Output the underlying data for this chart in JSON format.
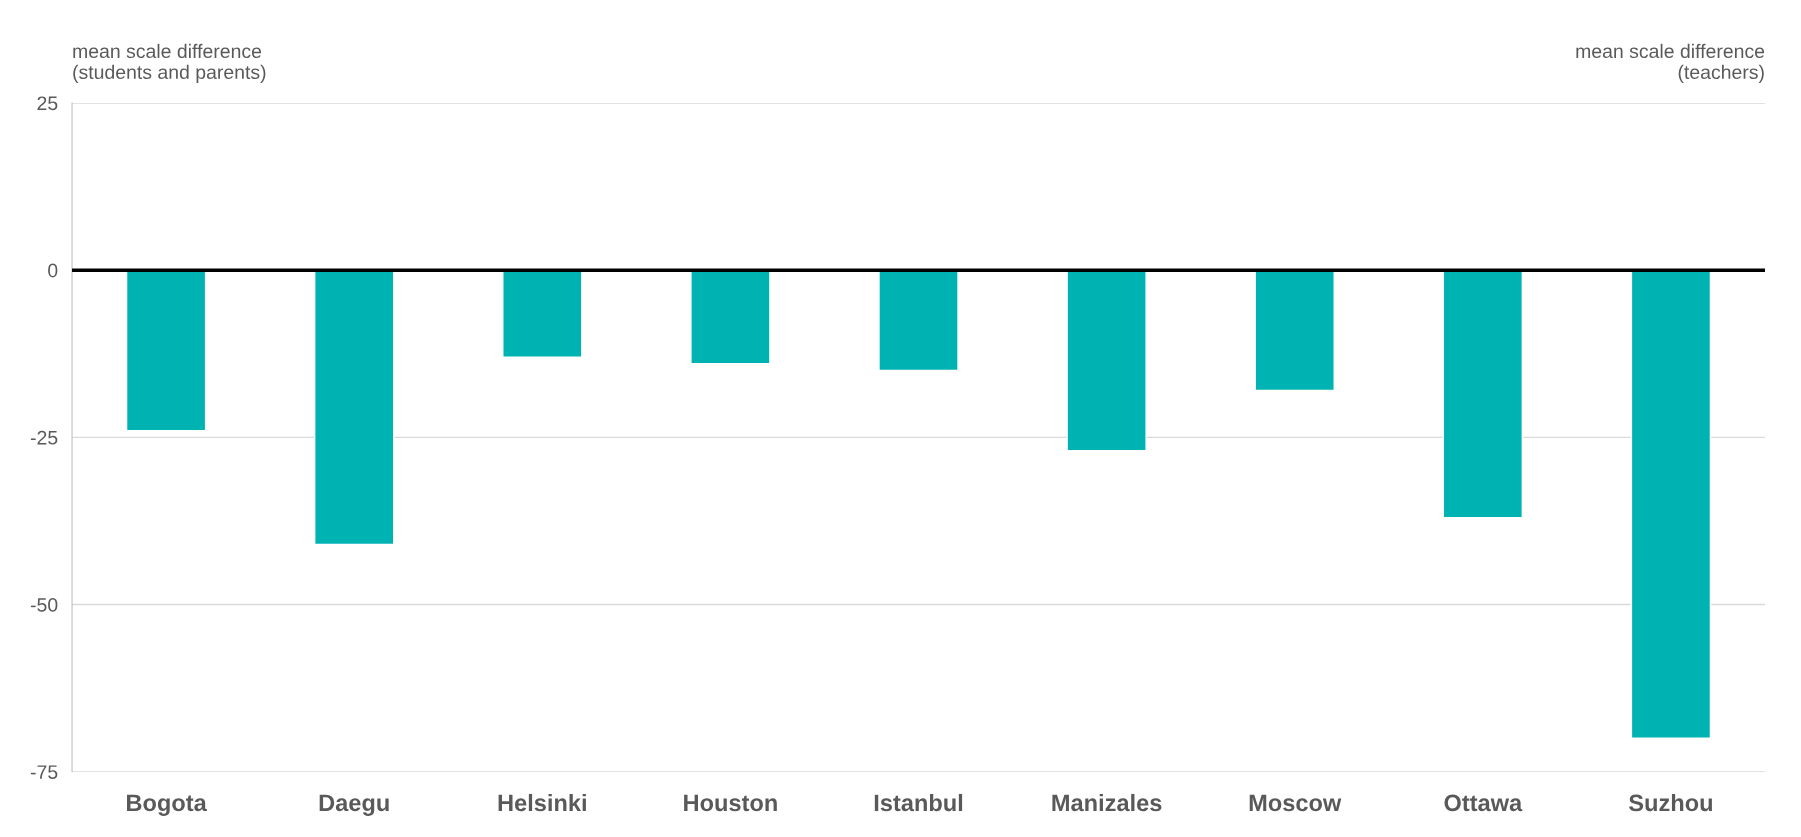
{
  "chart_data": {
    "type": "bar",
    "categories": [
      "Bogota",
      "Daegu",
      "Helsinki",
      "Houston",
      "Istanbul",
      "Manizales",
      "Moscow",
      "Ottawa",
      "Suzhou"
    ],
    "values": [
      -24,
      -41,
      -13,
      -14,
      -15,
      -27,
      -18,
      -37,
      -70
    ],
    "color": "#00b3b3",
    "ylabel": "mean scale difference\n(students and parents)",
    "annotations": [
      "mean scale difference\n(teachers)"
    ],
    "ylim": [
      -75,
      25
    ],
    "yticks": [
      -75,
      -50,
      -25,
      0,
      25
    ],
    "ref_lines": [
      {
        "axis": "y",
        "value": 0,
        "color": "#000000"
      }
    ],
    "grid": "y",
    "legend": false
  }
}
